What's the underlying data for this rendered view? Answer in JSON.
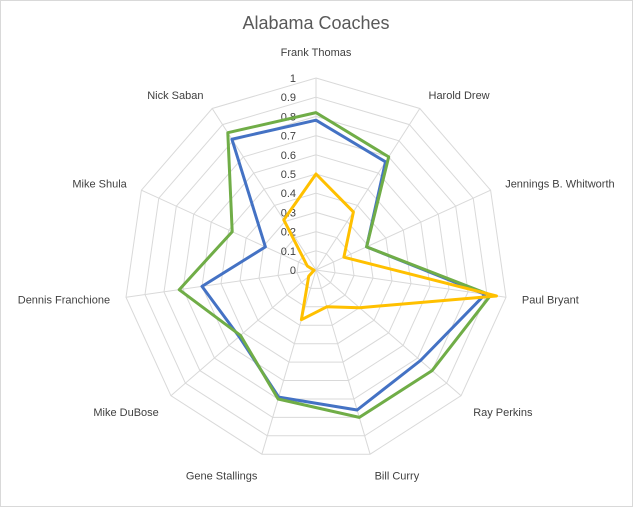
{
  "chart_data": {
    "type": "radar",
    "title": "Alabama Coaches",
    "categories": [
      "Frank Thomas",
      "Harold Drew",
      "Jennings B. Whitworth",
      "Paul Bryant",
      "Ray Perkins",
      "Bill Curry",
      "Gene Stallings",
      "Mike DuBose",
      "Dennis Franchione",
      "Mike Shula",
      "Nick Saban"
    ],
    "ticks": [
      "0",
      "0.1",
      "0.2",
      "0.3",
      "0.4",
      "0.5",
      "0.6",
      "0.7",
      "0.8",
      "0.9",
      "1"
    ],
    "rlim": [
      0,
      1
    ],
    "grid": true,
    "legend": "none",
    "series": [
      {
        "color": "#4472c4",
        "values": [
          0.78,
          0.67,
          0.29,
          0.89,
          0.72,
          0.76,
          0.69,
          0.53,
          0.6,
          0.29,
          0.81
        ]
      },
      {
        "color": "#70ad47",
        "values": [
          0.82,
          0.7,
          0.29,
          0.92,
          0.8,
          0.8,
          0.7,
          0.52,
          0.72,
          0.48,
          0.85
        ]
      },
      {
        "color": "#ffc000",
        "values": [
          0.5,
          0.36,
          0.16,
          0.95,
          0.3,
          0.2,
          0.27,
          0.05,
          0.01,
          0.05,
          0.31
        ]
      }
    ]
  }
}
